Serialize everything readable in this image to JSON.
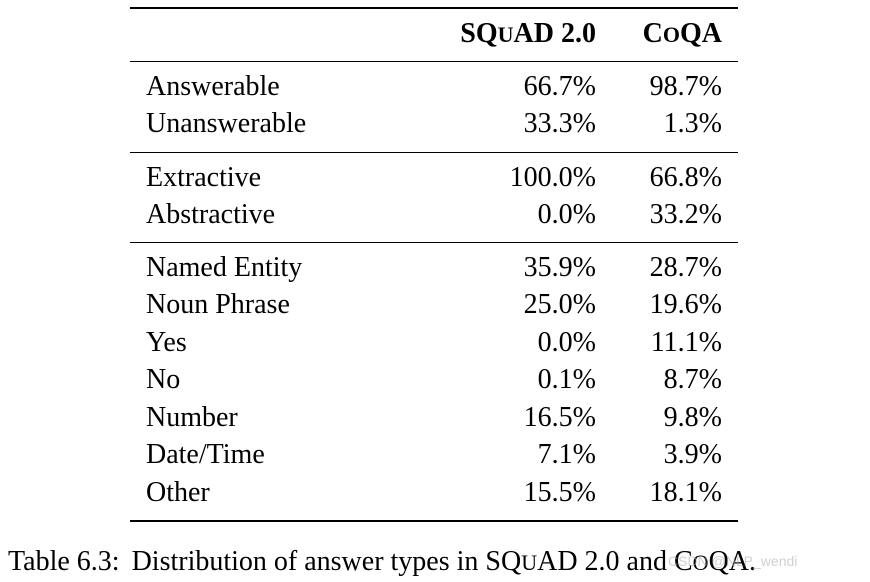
{
  "header": {
    "col1_prefix": "SQ",
    "col1_smallcaps": "U",
    "col1_suffix": "AD 2.0",
    "col2_prefix": "C",
    "col2_smallcaps": "O",
    "col2_suffix": "QA"
  },
  "groups": [
    {
      "rows": [
        {
          "label": "Answerable",
          "squad": "66.7%",
          "coqa": "98.7%"
        },
        {
          "label": "Unanswerable",
          "squad": "33.3%",
          "coqa": "1.3%"
        }
      ]
    },
    {
      "rows": [
        {
          "label": "Extractive",
          "squad": "100.0%",
          "coqa": "66.8%"
        },
        {
          "label": "Abstractive",
          "squad": "0.0%",
          "coqa": "33.2%"
        }
      ]
    },
    {
      "rows": [
        {
          "label": "Named Entity",
          "squad": "35.9%",
          "coqa": "28.7%"
        },
        {
          "label": "Noun Phrase",
          "squad": "25.0%",
          "coqa": "19.6%"
        },
        {
          "label": "Yes",
          "squad": "0.0%",
          "coqa": "11.1%"
        },
        {
          "label": "No",
          "squad": "0.1%",
          "coqa": "8.7%"
        },
        {
          "label": "Number",
          "squad": "16.5%",
          "coqa": "9.8%"
        },
        {
          "label": "Date/Time",
          "squad": "7.1%",
          "coqa": "3.9%"
        },
        {
          "label": "Other",
          "squad": "15.5%",
          "coqa": "18.1%"
        }
      ]
    }
  ],
  "caption": {
    "label": "Table 6.3:",
    "text_before": "Distribution of answer types in ",
    "squad_prefix": "SQ",
    "squad_smallcaps": "U",
    "squad_suffix": "AD 2.0",
    "text_middle": " and ",
    "coqa_prefix": "C",
    "coqa_smallcaps": "O",
    "coqa_suffix": "QA",
    "text_after": "."
  },
  "watermark": "CSDN @NLP_wendi"
}
